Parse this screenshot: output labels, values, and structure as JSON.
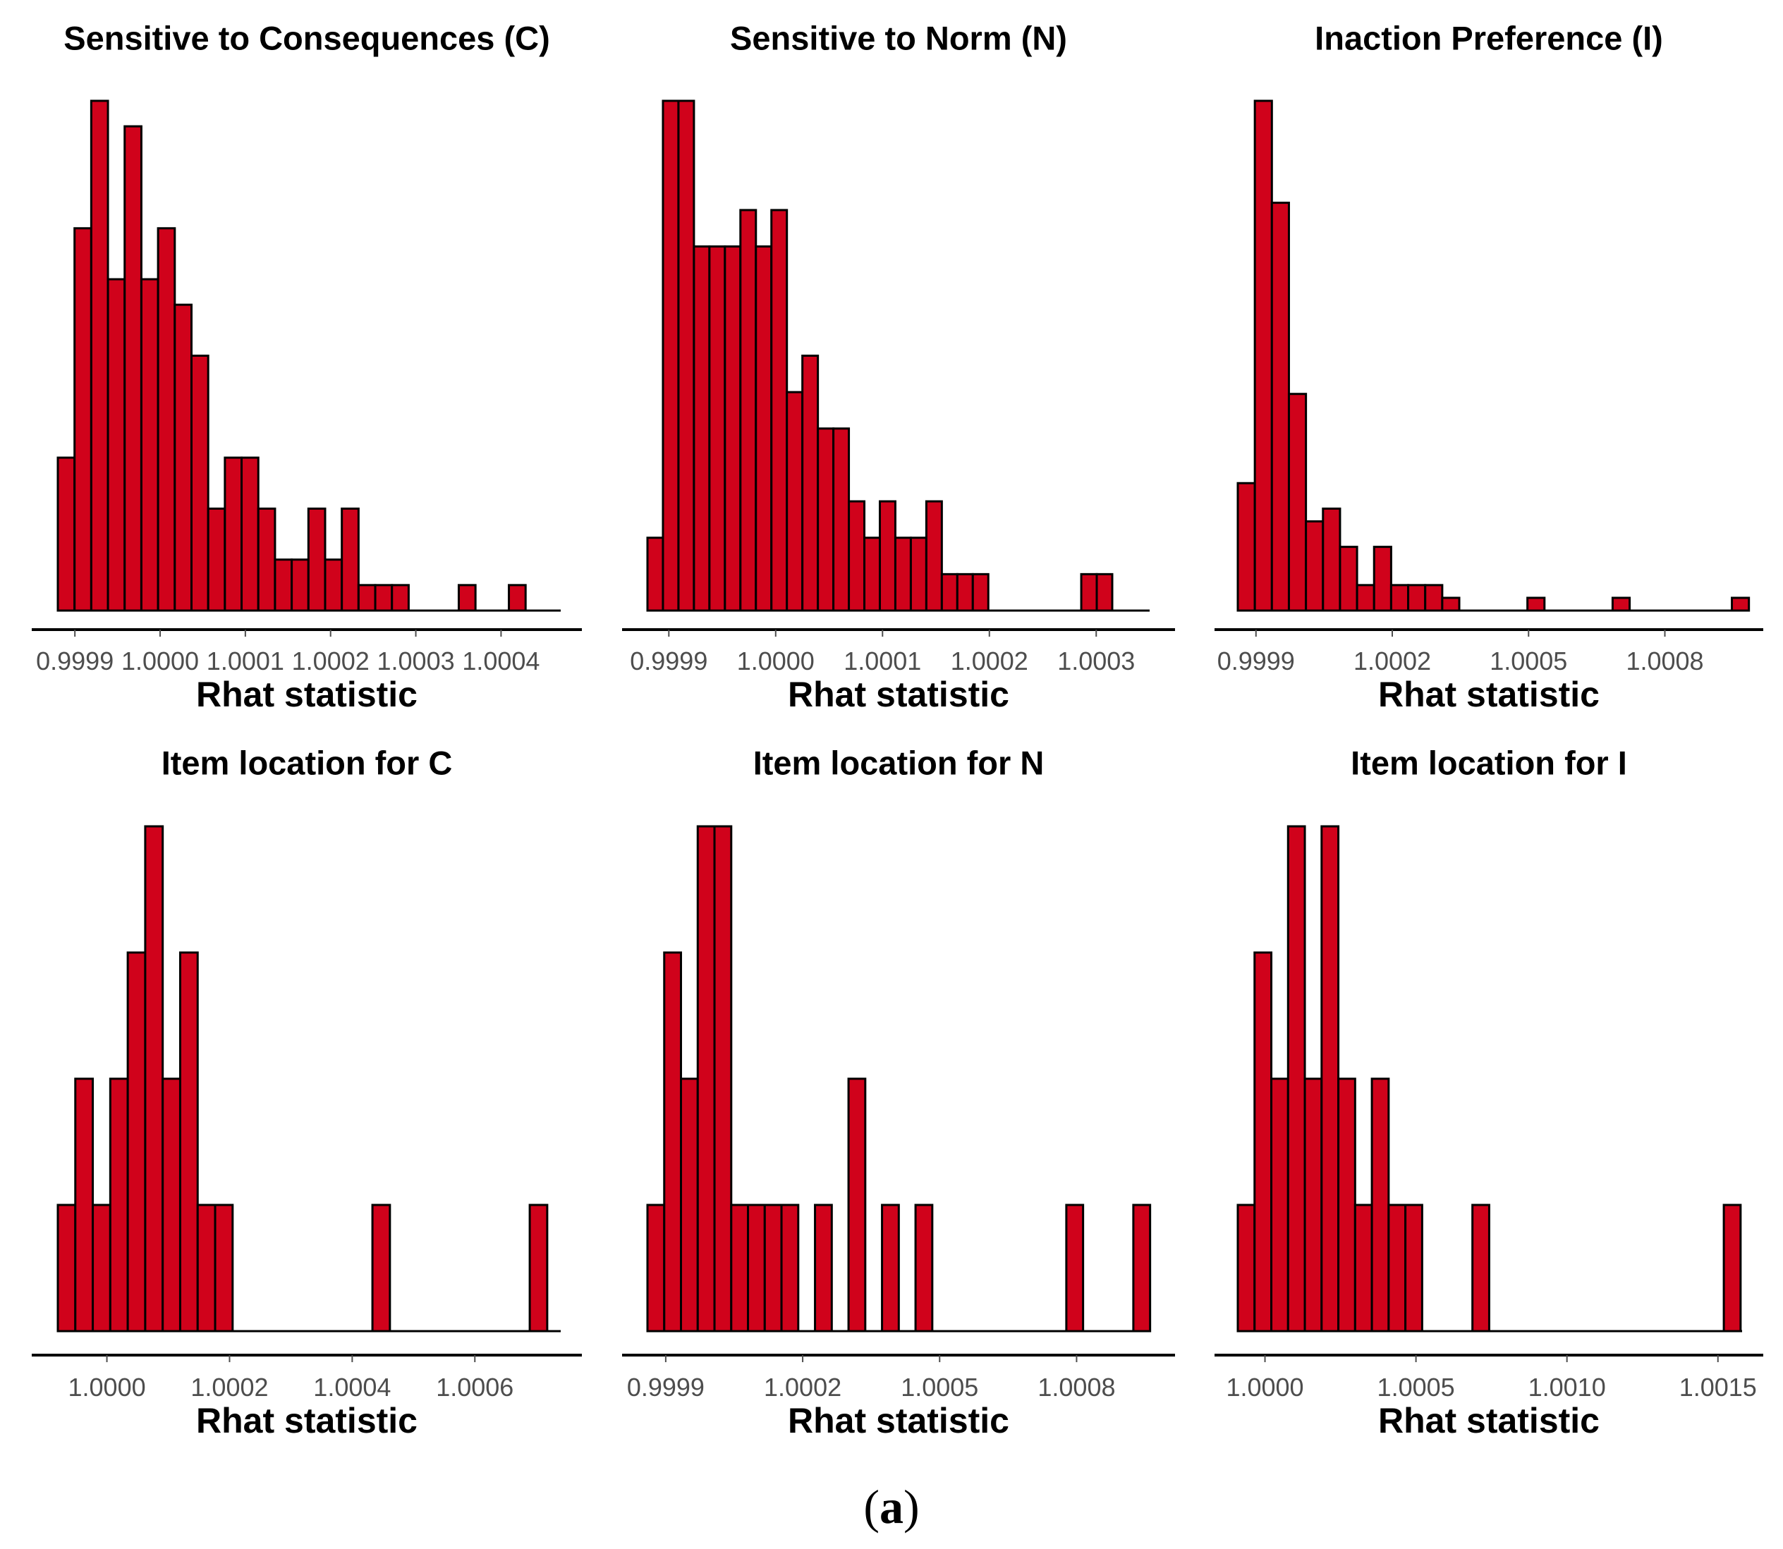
{
  "figure_label": "(a)",
  "style": {
    "bar_fill": "#d0021b",
    "bar_stroke": "#000000",
    "axis_color": "#000000",
    "tick_color": "#4d4d4d"
  },
  "chart_data": [
    {
      "type": "bar",
      "title": "Sensitive to Consequences (C)",
      "xlabel": "Rhat statistic",
      "ylabel": "",
      "xlim": [
        0.99988,
        1.00047
      ],
      "bin_width": 1.96e-05,
      "bin_start": 0.99988,
      "counts": [
        6,
        15,
        20,
        13,
        19,
        13,
        15,
        12,
        10,
        4,
        6,
        6,
        4,
        2,
        2,
        4,
        2,
        4,
        1,
        1,
        1,
        0,
        0,
        0,
        1,
        0,
        0,
        1
      ],
      "ticks": [
        0.9999,
        1.0,
        1.0001,
        1.0002,
        1.0003,
        1.0004
      ],
      "tick_labels": [
        "0.9999",
        "1.0000",
        "1.0001",
        "1.0002",
        "1.0003",
        "1.0004"
      ]
    },
    {
      "type": "bar",
      "title": "Sensitive to Norm (N)",
      "xlabel": "Rhat statistic",
      "ylabel": "",
      "xlim": [
        0.99988,
        1.00035
      ],
      "bin_width": 1.45e-05,
      "bin_start": 0.99988,
      "counts": [
        2,
        14,
        14,
        10,
        10,
        10,
        11,
        10,
        11,
        6,
        7,
        5,
        5,
        3,
        2,
        3,
        2,
        2,
        3,
        1,
        1,
        1,
        0,
        0,
        0,
        0,
        0,
        0,
        1,
        1
      ],
      "ticks": [
        0.9999,
        1.0,
        1.0001,
        1.0002,
        1.0003
      ],
      "tick_labels": [
        "0.9999",
        "1.0000",
        "1.0001",
        "1.0002",
        "1.0003"
      ]
    },
    {
      "type": "bar",
      "title": "Inaction Preference (I)",
      "xlabel": "Rhat statistic",
      "ylabel": "",
      "xlim": [
        0.99986,
        1.00097
      ],
      "bin_width": 3.75e-05,
      "bin_start": 0.99986,
      "counts": [
        10,
        40,
        32,
        17,
        7,
        8,
        5,
        2,
        5,
        2,
        2,
        2,
        1,
        0,
        0,
        0,
        0,
        1,
        0,
        0,
        0,
        0,
        1,
        0,
        0,
        0,
        0,
        0,
        0,
        1
      ],
      "ticks": [
        0.9999,
        1.0002,
        1.0005,
        1.0008
      ],
      "tick_labels": [
        "0.9999",
        "1.0002",
        "1.0005",
        "1.0008"
      ]
    },
    {
      "type": "bar",
      "title": "Item location for C",
      "xlabel": "Rhat statistic",
      "ylabel": "",
      "xlim": [
        0.99992,
        1.00074
      ],
      "bin_width": 2.85e-05,
      "bin_start": 0.99992,
      "counts": [
        2,
        4,
        2,
        4,
        6,
        8,
        4,
        6,
        2,
        2,
        0,
        0,
        0,
        0,
        0,
        0,
        0,
        0,
        2,
        0,
        0,
        0,
        0,
        0,
        0,
        0,
        0,
        2
      ],
      "ticks": [
        1.0,
        1.0002,
        1.0004,
        1.0006
      ],
      "tick_labels": [
        "1.0000",
        "1.0002",
        "1.0004",
        "1.0006"
      ]
    },
    {
      "type": "bar",
      "title": "Item location for N",
      "xlabel": "Rhat statistic",
      "ylabel": "",
      "xlim": [
        0.99986,
        1.00096
      ],
      "bin_width": 3.67e-05,
      "bin_start": 0.99986,
      "counts": [
        1,
        3,
        2,
        4,
        4,
        1,
        1,
        1,
        1,
        0,
        1,
        0,
        2,
        0,
        1,
        0,
        1,
        0,
        0,
        0,
        0,
        0,
        0,
        0,
        0,
        1,
        0,
        0,
        0,
        1
      ],
      "ticks": [
        0.9999,
        1.0002,
        1.0005,
        1.0008
      ],
      "tick_labels": [
        "0.9999",
        "1.0002",
        "1.0005",
        "1.0008"
      ]
    },
    {
      "type": "bar",
      "title": "Item location for I",
      "xlabel": "Rhat statistic",
      "ylabel": "",
      "xlim": [
        0.99991,
        1.00158
      ],
      "bin_width": 5.55e-05,
      "bin_start": 0.99991,
      "counts": [
        1,
        3,
        2,
        4,
        2,
        4,
        2,
        1,
        2,
        1,
        1,
        0,
        0,
        0,
        1,
        0,
        0,
        0,
        0,
        0,
        0,
        0,
        0,
        0,
        0,
        0,
        0,
        0,
        0,
        1
      ],
      "ticks": [
        1.0,
        1.0005,
        1.001,
        1.0015
      ],
      "tick_labels": [
        "1.0000",
        "1.0005",
        "1.0010",
        "1.0015"
      ]
    }
  ]
}
